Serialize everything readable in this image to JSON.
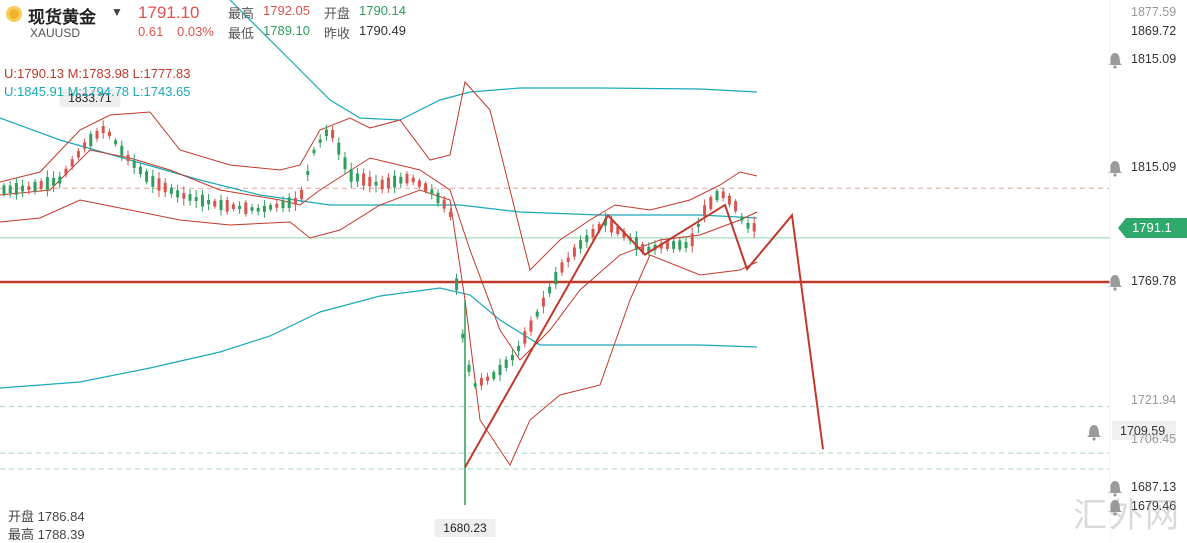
{
  "header": {
    "name": "现货黄金",
    "symbol": "XAUUSD",
    "price": "1791.10",
    "change": "0.61",
    "change_pct": "0.03%",
    "high_label": "最高",
    "high": "1792.05",
    "open_label": "开盘",
    "open": "1790.14",
    "low_label": "最低",
    "low": "1789.10",
    "prev_close_label": "昨收",
    "prev_close": "1790.49"
  },
  "indicators": {
    "bb_small": "U:1790.13  M:1783.98  L:1777.83",
    "bb_large": "U:1845.91  M:1794.78  L:1743.65"
  },
  "bottom": {
    "open_line": "开盘 1786.84",
    "high_line": "最高 1788.39"
  },
  "markers": {
    "high_box": "1833.71",
    "low_box": "1680.23"
  },
  "watermark": "汇外网",
  "colors": {
    "up": "#d9534f",
    "down": "#2e9e5e",
    "bb_small": "#c0392b",
    "bb_large": "#1aa9b8",
    "forecast": "#c0392b",
    "support": "#c0392b",
    "price_line": "#2fa86b"
  },
  "chart_data": {
    "type": "line",
    "y_axis_ticks": [
      "1877.59",
      "1869.72",
      "1815.09",
      "1815.09",
      "1791.10",
      "1769.78",
      "1721.94",
      "1709.59",
      "1706.45",
      "1687.13",
      "1679.46"
    ],
    "alert_levels": [
      "1815.09",
      "1815.09",
      "1769.78",
      "1709.59",
      "1687.13",
      "1679.46"
    ],
    "current_price": 1791.1,
    "support_level": 1769.78,
    "reference_levels": [
      1815.09,
      1791.1,
      1709.59,
      1687.13,
      1679.46
    ],
    "range_high": 1833.71,
    "range_low": 1680.23,
    "forecast_path": [
      {
        "step": 0,
        "price": 1680.23
      },
      {
        "step": 1,
        "price": 1802.0
      },
      {
        "step": 2,
        "price": 1783.0
      },
      {
        "step": 3,
        "price": 1807.0
      },
      {
        "step": 4,
        "price": 1776.0
      },
      {
        "step": 5,
        "price": 1802.0
      },
      {
        "step": 6,
        "price": 1689.0
      }
    ],
    "grid": false,
    "legend": "top-left"
  }
}
